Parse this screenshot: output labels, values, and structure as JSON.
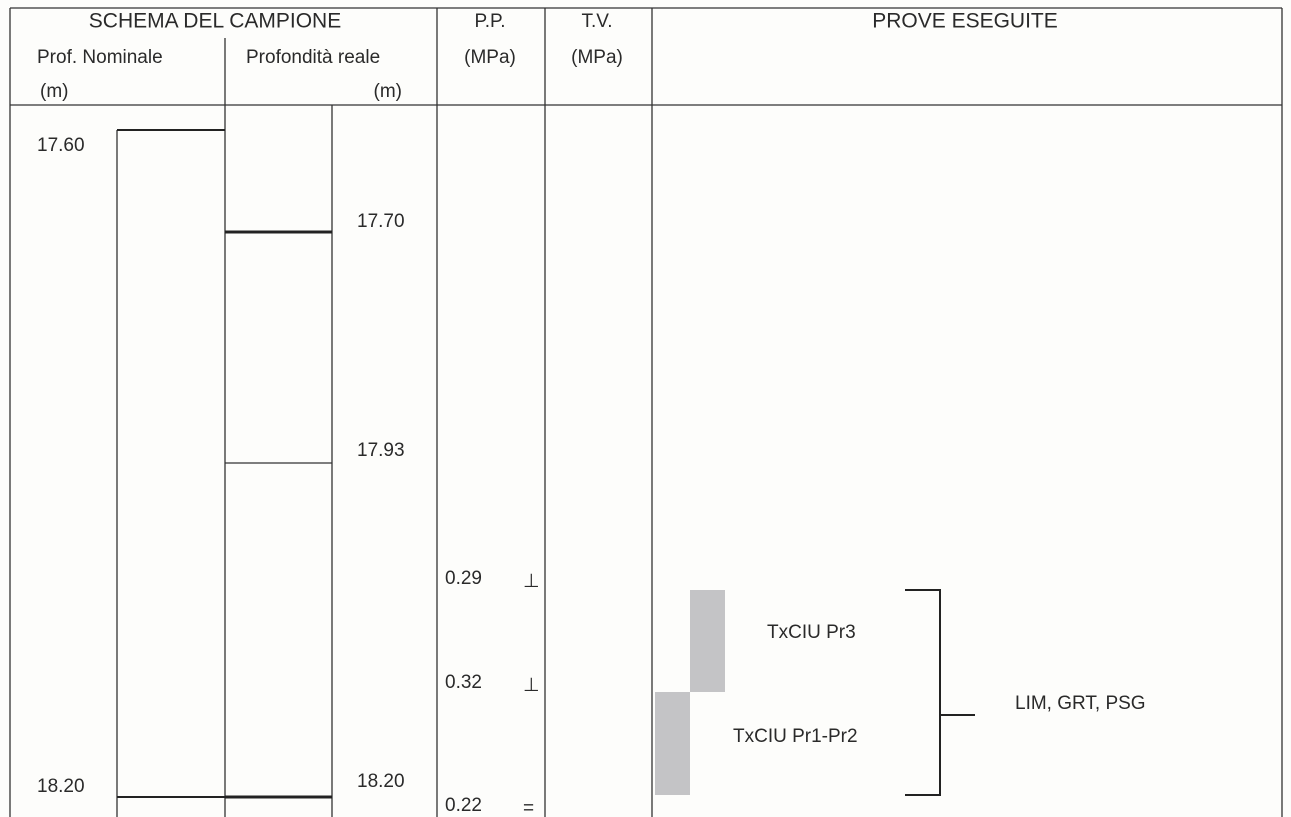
{
  "header": {
    "schema": "SCHEMA DEL CAMPIONE",
    "prof_nominale": "Prof. Nominale",
    "prof_nominale_unit": "(m)",
    "prof_reale": "Profondità reale",
    "prof_reale_unit": "(m)",
    "pp": "P.P.",
    "pp_unit": "(MPa)",
    "tv": "T.V.",
    "tv_unit": "(MPa)",
    "prove": "PROVE ESEGUITE"
  },
  "nominal_depths": [
    "17.60",
    "18.20"
  ],
  "real_depths": [
    "17.70",
    "17.93",
    "18.20"
  ],
  "pp_readings": [
    {
      "value": "0.29",
      "symbol": "⊥"
    },
    {
      "value": "0.32",
      "symbol": "⊥"
    },
    {
      "value": "0.22",
      "symbol": "="
    }
  ],
  "tests": {
    "upper": "TxCIU Pr3",
    "lower": "TxCIU Pr1-Pr2",
    "group": "LIM, GRT, PSG"
  }
}
